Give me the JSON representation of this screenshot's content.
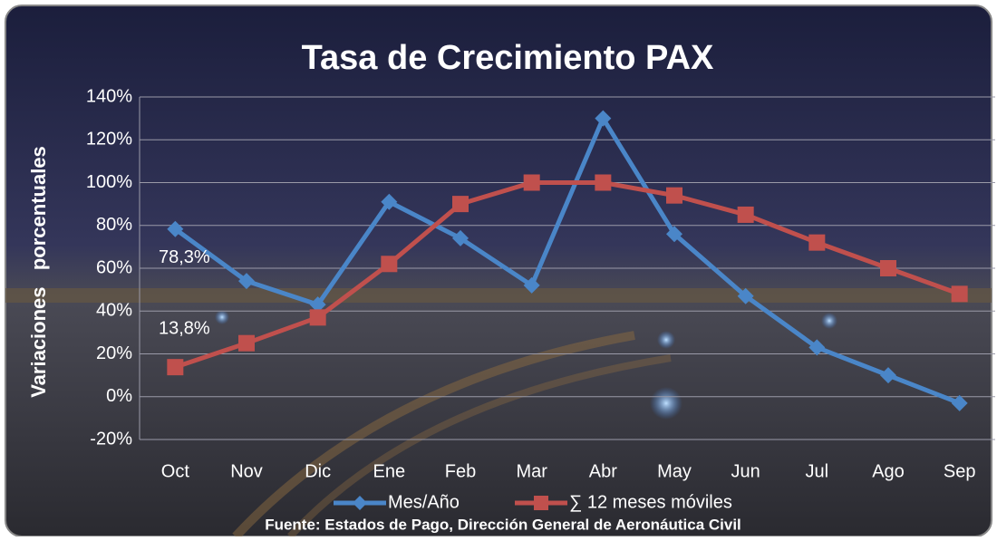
{
  "chart_data": {
    "type": "line",
    "title": "Tasa de Crecimiento PAX",
    "y_label": "Variaciones   porcentuales",
    "source": "Fuente: Estados de Pago, Dirección General de Aeronáutica Civil",
    "categories": [
      "Oct",
      "Nov",
      "Dic",
      "Ene",
      "Feb",
      "Mar",
      "Abr",
      "May",
      "Jun",
      "Jul",
      "Ago",
      "Sep"
    ],
    "series": [
      {
        "name": "Mes/Año",
        "color": "#4a86c8",
        "marker": "diamond",
        "values": [
          78.3,
          54,
          43,
          91,
          74,
          52,
          130,
          76,
          47,
          23,
          10,
          -3
        ],
        "value_labels": [
          "78,3%",
          null,
          null,
          null,
          null,
          null,
          null,
          null,
          null,
          null,
          null,
          null
        ]
      },
      {
        "name": "∑ 12 meses móviles",
        "color": "#c0504d",
        "marker": "square",
        "values": [
          13.8,
          25,
          37,
          62,
          90,
          100,
          100,
          94,
          85,
          72,
          60,
          48
        ],
        "value_labels": [
          "13,8%",
          null,
          null,
          null,
          null,
          null,
          null,
          null,
          null,
          null,
          null,
          null
        ]
      }
    ],
    "ylim": [
      -20,
      140
    ],
    "yticks": [
      {
        "value": -20,
        "label": "-20%"
      },
      {
        "value": 0,
        "label": "0%"
      },
      {
        "value": 20,
        "label": "20%"
      },
      {
        "value": 40,
        "label": "40%"
      },
      {
        "value": 60,
        "label": "60%"
      },
      {
        "value": 80,
        "label": "80%"
      },
      {
        "value": 100,
        "label": "100%"
      },
      {
        "value": 120,
        "label": "120%"
      },
      {
        "value": 140,
        "label": "140%"
      }
    ],
    "grid": true
  }
}
